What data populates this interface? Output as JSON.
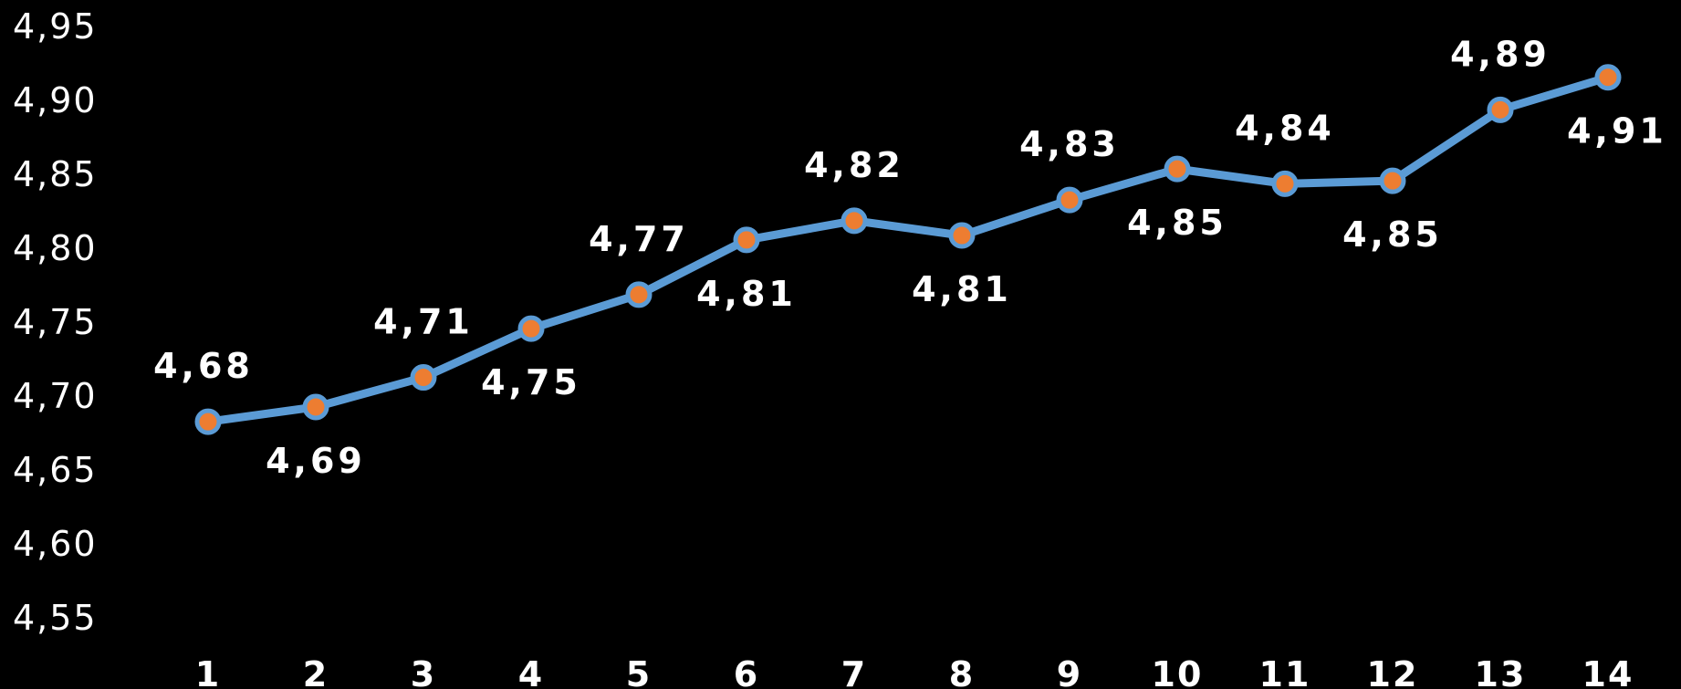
{
  "chart_data": {
    "type": "line",
    "x": [
      1,
      2,
      3,
      4,
      5,
      6,
      7,
      8,
      9,
      10,
      11,
      12,
      13,
      14
    ],
    "values": [
      4.682,
      4.692,
      4.712,
      4.745,
      4.768,
      4.805,
      4.818,
      4.808,
      4.832,
      4.853,
      4.843,
      4.845,
      4.893,
      4.915
    ],
    "data_labels": [
      "4,68",
      "4,69",
      "4,71",
      "4,75",
      "4,77",
      "4,81",
      "4,82",
      "4,81",
      "4,83",
      "4,85",
      "4,84",
      "4,85",
      "4,89",
      "4,91"
    ],
    "label_positions": [
      "above",
      "below",
      "above",
      "below",
      "above",
      "below",
      "above",
      "below",
      "above",
      "below",
      "above",
      "below",
      "above",
      "below"
    ],
    "x_tick_labels": [
      "1",
      "2",
      "3",
      "4",
      "5",
      "6",
      "7",
      "8",
      "9",
      "10",
      "11",
      "12",
      "13",
      "14"
    ],
    "y_ticks": [
      4.55,
      4.6,
      4.65,
      4.7,
      4.75,
      4.8,
      4.85,
      4.9,
      4.95
    ],
    "y_tick_labels": [
      "4,55",
      "4,60",
      "4,65",
      "4,70",
      "4,75",
      "4,80",
      "4,85",
      "4,90",
      "4,95"
    ],
    "ylim": [
      4.55,
      4.95
    ],
    "title": "",
    "xlabel": "",
    "ylabel": "",
    "grid": false,
    "legend": "none",
    "colors": {
      "background": "#000000",
      "line": "#5b9bd5",
      "marker": "#ed7d31",
      "text": "#ffffff"
    }
  }
}
